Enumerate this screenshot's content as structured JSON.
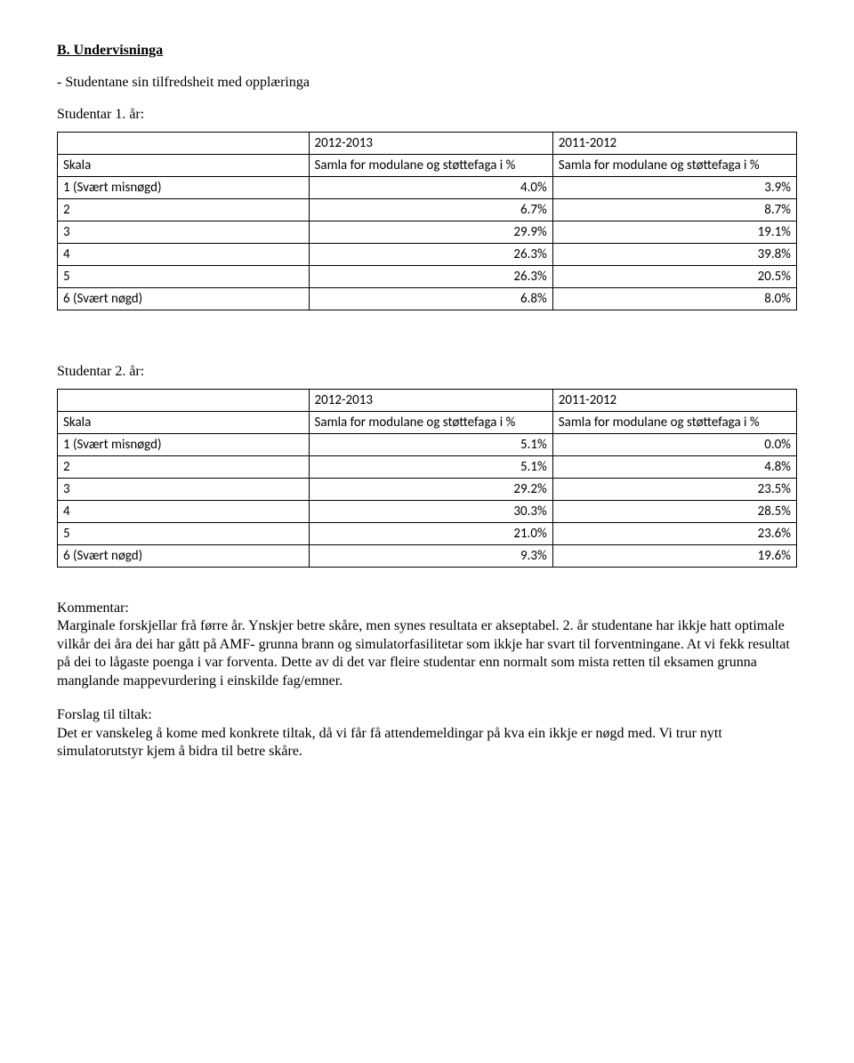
{
  "heading": "B. Undervisninga",
  "subheading": "- Studentane sin tilfredsheit med opplæringa",
  "table1": {
    "period_label": "Studentar 1. år:",
    "header_years": [
      "2012-2013",
      "2011-2012"
    ],
    "scale_header": "Skala",
    "metric_header": "Samla for modulane og støttefaga i %",
    "rows": [
      {
        "label": "1 (Svært misnøgd)",
        "v1": "4.0%",
        "v2": "3.9%"
      },
      {
        "label": "2",
        "v1": "6.7%",
        "v2": "8.7%"
      },
      {
        "label": "3",
        "v1": "29.9%",
        "v2": "19.1%"
      },
      {
        "label": "4",
        "v1": "26.3%",
        "v2": "39.8%"
      },
      {
        "label": "5",
        "v1": "26.3%",
        "v2": "20.5%"
      },
      {
        "label": "6 (Svært nøgd)",
        "v1": "6.8%",
        "v2": "8.0%"
      }
    ]
  },
  "table2": {
    "period_label": "Studentar 2. år:",
    "header_years": [
      "2012-2013",
      "2011-2012"
    ],
    "scale_header": "Skala",
    "metric_header": "Samla for modulane og støttefaga i %",
    "rows": [
      {
        "label": "1 (Svært misnøgd)",
        "v1": "5.1%",
        "v2": "0.0%"
      },
      {
        "label": "2",
        "v1": "5.1%",
        "v2": "4.8%"
      },
      {
        "label": "3",
        "v1": "29.2%",
        "v2": "23.5%"
      },
      {
        "label": "4",
        "v1": "30.3%",
        "v2": "28.5%"
      },
      {
        "label": "5",
        "v1": "21.0%",
        "v2": "23.6%"
      },
      {
        "label": "6 (Svært nøgd)",
        "v1": "9.3%",
        "v2": "19.6%"
      }
    ]
  },
  "kommentar": {
    "label": "Kommentar:",
    "text": "Marginale forskjellar frå førre år. Ynskjer betre skåre, men synes resultata er akseptabel. 2. år studentane har ikkje hatt optimale vilkår dei åra dei har gått på AMF- grunna brann og simulatorfasilitetar som ikkje har svart til forventningane. At vi fekk resultat på dei to lågaste poenga i var forventa. Dette av di det var fleire studentar enn normalt som mista retten til eksamen grunna manglande mappevurdering i einskilde fag/emner."
  },
  "tiltak": {
    "label": "Forslag til tiltak:",
    "text": "Det er vanskeleg å kome med konkrete tiltak, då vi får få attendemeldingar på kva ein ikkje er nøgd med. Vi trur nytt simulatorutstyr kjem å bidra til betre skåre."
  }
}
